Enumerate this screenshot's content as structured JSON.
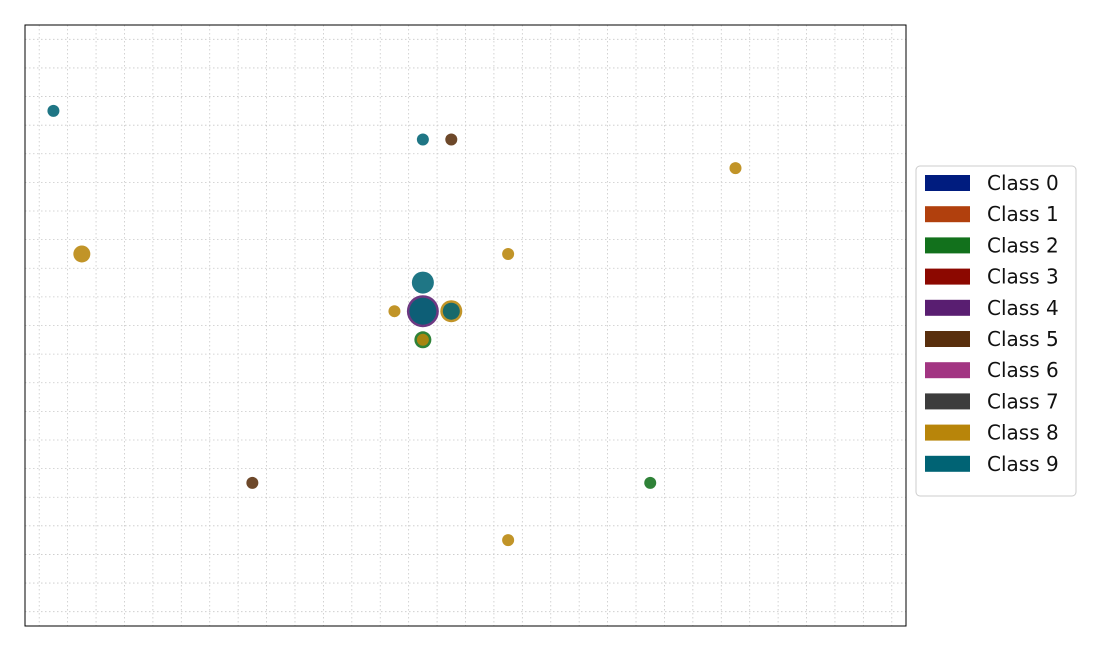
{
  "chart_data": {
    "type": "scatter",
    "title": "",
    "xlabel": "",
    "ylabel": "",
    "xlim": [
      -0.5,
      30.5
    ],
    "ylim": [
      -0.5,
      20.5
    ],
    "grid": true,
    "legend_position": "right-center",
    "legend": [
      {
        "name": "Class 0",
        "color": "#001c7f"
      },
      {
        "name": "Class 1",
        "color": "#b1400d"
      },
      {
        "name": "Class 2",
        "color": "#12711c"
      },
      {
        "name": "Class 3",
        "color": "#8c0800"
      },
      {
        "name": "Class 4",
        "color": "#591e71"
      },
      {
        "name": "Class 5",
        "color": "#592f0d"
      },
      {
        "name": "Class 6",
        "color": "#a23582"
      },
      {
        "name": "Class 7",
        "color": "#3c3c3c"
      },
      {
        "name": "Class 8",
        "color": "#b8850a"
      },
      {
        "name": "Class 9",
        "color": "#006374"
      }
    ],
    "points": [
      {
        "x": 0.5,
        "y": 17.5,
        "class": 9,
        "size": 1
      },
      {
        "x": 13.5,
        "y": 16.5,
        "class": 9,
        "size": 1
      },
      {
        "x": 14.5,
        "y": 16.5,
        "class": 5,
        "size": 1
      },
      {
        "x": 24.5,
        "y": 15.5,
        "class": 8,
        "size": 1
      },
      {
        "x": 1.5,
        "y": 12.5,
        "class": 8,
        "size": 2
      },
      {
        "x": 16.5,
        "y": 12.5,
        "class": 8,
        "size": 1
      },
      {
        "x": 13.5,
        "y": 11.5,
        "class": 9,
        "size": 3
      },
      {
        "x": 12.5,
        "y": 10.5,
        "class": 8,
        "size": 1
      },
      {
        "x": 13.5,
        "y": 10.5,
        "class": 4,
        "size": 5
      },
      {
        "x": 13.5,
        "y": 10.5,
        "class": 9,
        "size": 4
      },
      {
        "x": 14.5,
        "y": 10.5,
        "class": 8,
        "size": 3
      },
      {
        "x": 14.5,
        "y": 10.5,
        "class": 9,
        "size": 2
      },
      {
        "x": 13.5,
        "y": 9.5,
        "class": 2,
        "size": 2
      },
      {
        "x": 13.5,
        "y": 9.5,
        "class": 8,
        "size": 1
      },
      {
        "x": 7.5,
        "y": 4.5,
        "class": 5,
        "size": 1
      },
      {
        "x": 21.5,
        "y": 4.5,
        "class": 2,
        "size": 1
      },
      {
        "x": 16.5,
        "y": 2.5,
        "class": 8,
        "size": 1
      }
    ]
  }
}
